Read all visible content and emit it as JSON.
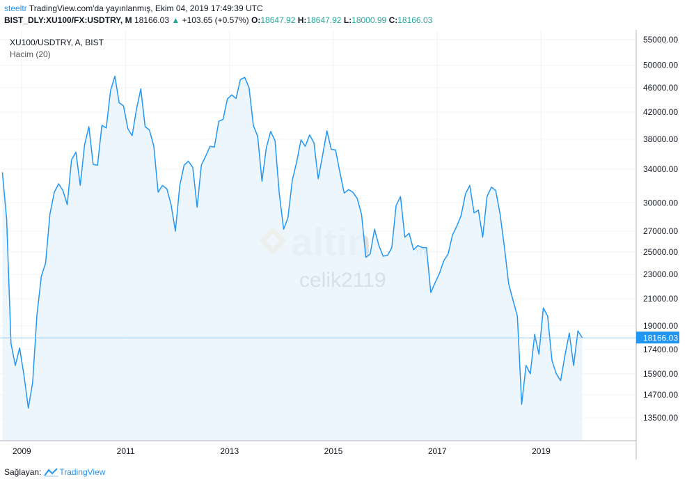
{
  "header": {
    "author": "steeltr",
    "published": "TradingView.com'da yayınlanmış, Ekim 04, 2019 17:49:39 UTC",
    "symbol": "BIST_DLY:XU100/FX:USDTRY, M",
    "last": "18166.03",
    "change_arrow": "▲",
    "change": "+103.65 (+0.57%)",
    "o_label": "O:",
    "o_value": "18647.92",
    "h_label": "H:",
    "h_value": "18647.92",
    "l_label": "L:",
    "l_value": "18000.99",
    "c_label": "C:",
    "c_value": "18166.03"
  },
  "legend": {
    "series": "XU100/USDTRY, A, BIST",
    "indicator": "Hacim (20)"
  },
  "watermark": {
    "logo_text": "altin",
    "logo_suffix": ".in",
    "user": "celik2119"
  },
  "footer": {
    "source_label": "Sağlayan:",
    "brand": "TradingView"
  },
  "colors": {
    "line": "#2196f3",
    "area": "#eaf4fc",
    "last_price_tag": "#2196f3",
    "grid": "#f0f3fa",
    "axis": "#b2b5be",
    "up": "#26a69a",
    "watermark": "#f5b041"
  },
  "chart_data": {
    "type": "area",
    "scale": "log",
    "ylim": [
      12400,
      57000
    ],
    "xlim": [
      2008.58,
      2020.83
    ],
    "y_ticks": [
      55000,
      50000,
      46000,
      42000,
      38000,
      34000,
      30000,
      27000,
      25000,
      23000,
      21000,
      19000,
      17400,
      15900,
      14700,
      13500
    ],
    "y_tick_labels": [
      "55000.00",
      "50000.00",
      "46000.00",
      "42000.00",
      "38000.00",
      "34000.00",
      "30000.00",
      "27000.00",
      "25000.00",
      "23000.00",
      "21000.00",
      "19000.00",
      "17400.00",
      "15900.00",
      "14700.00",
      "13500.00"
    ],
    "x_ticks": [
      2009,
      2011,
      2013,
      2015,
      2017,
      2019
    ],
    "x_tick_labels": [
      "2009",
      "2011",
      "2013",
      "2015",
      "2017",
      "2019"
    ],
    "last_value": 18166.03,
    "last_value_label": "18166.03",
    "x": [
      2008.625,
      2008.708,
      2008.792,
      2008.875,
      2008.958,
      2009.042,
      2009.125,
      2009.208,
      2009.292,
      2009.375,
      2009.458,
      2009.542,
      2009.625,
      2009.708,
      2009.792,
      2009.875,
      2009.958,
      2010.042,
      2010.125,
      2010.208,
      2010.292,
      2010.375,
      2010.458,
      2010.542,
      2010.625,
      2010.708,
      2010.792,
      2010.875,
      2010.958,
      2011.042,
      2011.125,
      2011.208,
      2011.292,
      2011.375,
      2011.458,
      2011.542,
      2011.625,
      2011.708,
      2011.792,
      2011.875,
      2011.958,
      2012.042,
      2012.125,
      2012.208,
      2012.292,
      2012.375,
      2012.458,
      2012.542,
      2012.625,
      2012.708,
      2012.792,
      2012.875,
      2012.958,
      2013.042,
      2013.125,
      2013.208,
      2013.292,
      2013.375,
      2013.458,
      2013.542,
      2013.625,
      2013.708,
      2013.792,
      2013.875,
      2013.958,
      2014.042,
      2014.125,
      2014.208,
      2014.292,
      2014.375,
      2014.458,
      2014.542,
      2014.625,
      2014.708,
      2014.792,
      2014.875,
      2014.958,
      2015.042,
      2015.125,
      2015.208,
      2015.292,
      2015.375,
      2015.458,
      2015.542,
      2015.625,
      2015.708,
      2015.792,
      2015.875,
      2015.958,
      2016.042,
      2016.125,
      2016.208,
      2016.292,
      2016.375,
      2016.458,
      2016.542,
      2016.625,
      2016.708,
      2016.792,
      2016.875,
      2016.958,
      2017.042,
      2017.125,
      2017.208,
      2017.292,
      2017.375,
      2017.458,
      2017.542,
      2017.625,
      2017.708,
      2017.792,
      2017.875,
      2017.958,
      2018.042,
      2018.125,
      2018.208,
      2018.292,
      2018.375,
      2018.458,
      2018.542,
      2018.625,
      2018.708,
      2018.792,
      2018.875,
      2018.958,
      2019.042,
      2019.125,
      2019.208,
      2019.292,
      2019.375,
      2019.458,
      2019.542,
      2019.625,
      2019.708,
      2019.792
    ],
    "values": [
      33600,
      28200,
      17800,
      16400,
      17500,
      15800,
      14000,
      15400,
      19800,
      22800,
      24000,
      28800,
      31200,
      32200,
      31400,
      29800,
      35200,
      36200,
      32000,
      37200,
      39800,
      34600,
      34500,
      40000,
      39600,
      45500,
      48000,
      43500,
      43000,
      39500,
      38500,
      42500,
      45800,
      39800,
      39300,
      37000,
      31200,
      32000,
      31600,
      29800,
      27000,
      32000,
      34500,
      35000,
      34200,
      29500,
      34500,
      35700,
      37000,
      36900,
      40600,
      40900,
      44100,
      44800,
      44200,
      47400,
      47800,
      46000,
      40000,
      38400,
      32500,
      36800,
      39100,
      37800,
      31000,
      27200,
      28400,
      32600,
      34900,
      37900,
      37000,
      38600,
      37500,
      32800,
      35800,
      39200,
      36600,
      36500,
      33600,
      31100,
      31500,
      31200,
      30500,
      28700,
      24500,
      24800,
      27200,
      25600,
      24600,
      24700,
      25400,
      29700,
      30700,
      26400,
      26800,
      25200,
      25600,
      25400,
      25400,
      21500,
      22300,
      23100,
      24200,
      24800,
      26600,
      27500,
      28600,
      31000,
      32000,
      28900,
      29200,
      26400,
      30700,
      31800,
      31400,
      28800,
      25500,
      22200,
      20900,
      19700,
      14200,
      16400,
      15900,
      18400,
      17100,
      20300,
      19700,
      16700,
      15900,
      15500,
      17000,
      18500,
      16400,
      18650,
      18166
    ]
  }
}
